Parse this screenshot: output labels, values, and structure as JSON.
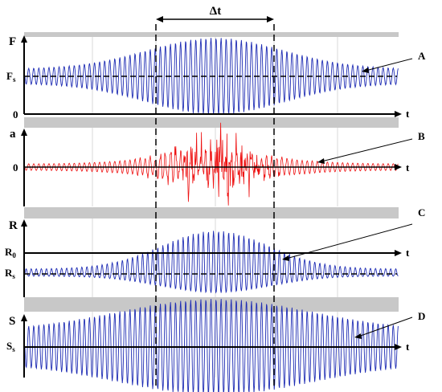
{
  "delta_label": "Δt",
  "panels": [
    {
      "id": "F",
      "axis_label": "F",
      "ref_label": "Fs",
      "zero_label": "0",
      "t_label": "t",
      "callout": "A",
      "color": "#1f2db4"
    },
    {
      "id": "a",
      "axis_label": "a",
      "zero_label": "0",
      "t_label": "t",
      "callout": "B",
      "color": "#ee1111"
    },
    {
      "id": "R",
      "axis_label": "R",
      "ref_label": "R0",
      "sub_label": "Rs",
      "t_label": "t",
      "callout": "C",
      "color": "#1f2db4"
    },
    {
      "id": "S",
      "axis_label": "S",
      "ref_label": "Ss",
      "t_label": "t",
      "callout": "D",
      "color": "#1f2db4"
    }
  ]
}
